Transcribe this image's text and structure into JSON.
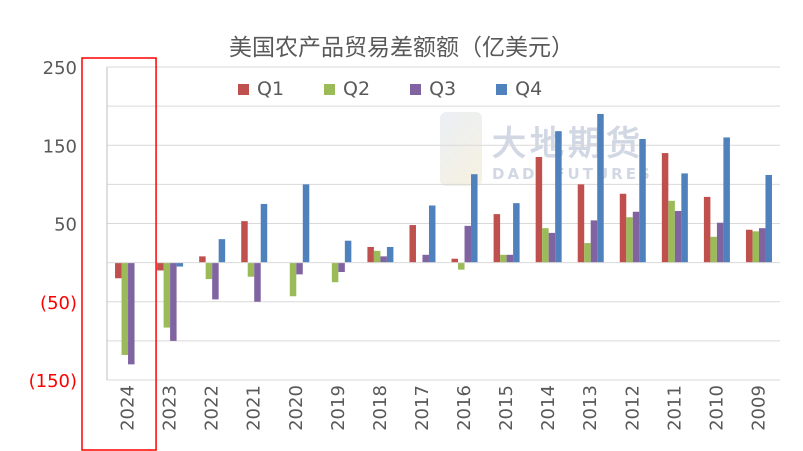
{
  "chart_data": {
    "type": "bar",
    "title": "美国农产品贸易差额额（亿美元）",
    "categories": [
      "2024",
      "2023",
      "2022",
      "2021",
      "2020",
      "2019",
      "2018",
      "2017",
      "2016",
      "2015",
      "2014",
      "2013",
      "2012",
      "2011",
      "2010",
      "2009"
    ],
    "series": [
      {
        "name": "Q1",
        "color": "#c0504d",
        "values": [
          -20,
          -10,
          8,
          53,
          0,
          0,
          20,
          48,
          5,
          62,
          135,
          100,
          88,
          140,
          84,
          42
        ]
      },
      {
        "name": "Q2",
        "color": "#9bbb59",
        "values": [
          -118,
          -83,
          -21,
          -18,
          -43,
          -25,
          15,
          0,
          -9,
          10,
          44,
          25,
          58,
          79,
          33,
          40
        ]
      },
      {
        "name": "Q3",
        "color": "#8064a2",
        "values": [
          -130,
          -100,
          -47,
          -50,
          -15,
          -12,
          8,
          10,
          47,
          10,
          38,
          54,
          65,
          66,
          51,
          44
        ]
      },
      {
        "name": "Q4",
        "color": "#4f81bd",
        "values": [
          0,
          -5,
          30,
          75,
          100,
          28,
          20,
          73,
          113,
          76,
          168,
          190,
          158,
          114,
          160,
          112
        ]
      }
    ],
    "ylim": [
      -150,
      250
    ],
    "yticks": [
      {
        "value": 250,
        "label": "250",
        "color": "#595959"
      },
      {
        "value": 150,
        "label": "150",
        "color": "#595959"
      },
      {
        "value": 50,
        "label": "50",
        "color": "#595959"
      },
      {
        "value": -50,
        "label": "(50)",
        "color": "#ff0000"
      },
      {
        "value": -150,
        "label": "(150)",
        "color": "#ff0000"
      }
    ],
    "grid": true,
    "legend_position": "top-center",
    "highlight_category": "2024",
    "highlight_color": "#ff0000"
  },
  "watermark": {
    "main": "大地期货",
    "sub": "DADI FUTURES"
  }
}
